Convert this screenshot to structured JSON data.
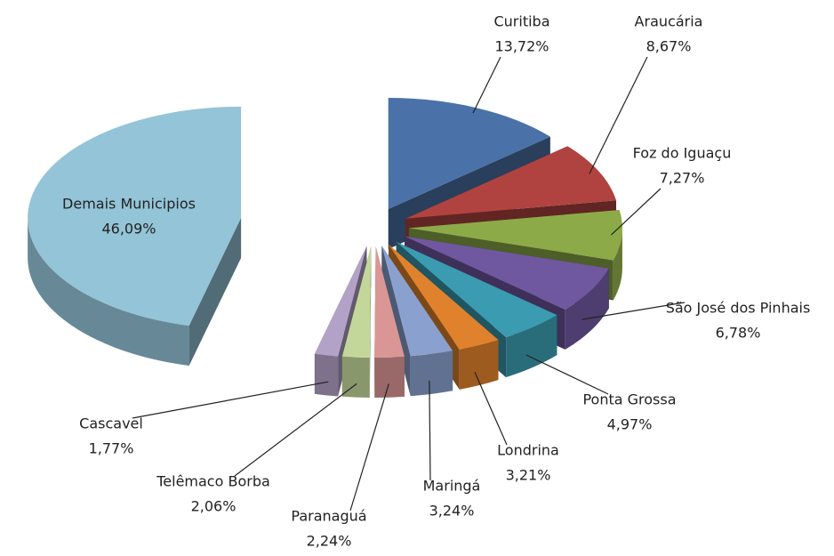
{
  "chart_data": {
    "type": "pie",
    "categories": [
      "Curitiba",
      "Araucária",
      "Foz do Iguaçu",
      "São José dos Pinhais",
      "Ponta Grossa",
      "Londrina",
      "Maringá",
      "Paranaguá",
      "Telêmaco Borba",
      "Cascavel",
      "Demais Municipios"
    ],
    "values": [
      13.72,
      8.67,
      7.27,
      6.78,
      4.97,
      3.21,
      3.24,
      2.24,
      2.06,
      1.77,
      46.09
    ],
    "value_labels": [
      "13,72%",
      "8,67%",
      "7,27%",
      "6,78%",
      "4,97%",
      "3,21%",
      "3,24%",
      "2,24%",
      "2,06%",
      "1,77%",
      "46,09%"
    ],
    "colors": [
      "#4a72a8",
      "#b04340",
      "#8daa48",
      "#7058a0",
      "#3b9bb0",
      "#e0822d",
      "#8aa1cf",
      "#d99694",
      "#c4d79b",
      "#b3a2c7",
      "#93c4d7"
    ]
  }
}
